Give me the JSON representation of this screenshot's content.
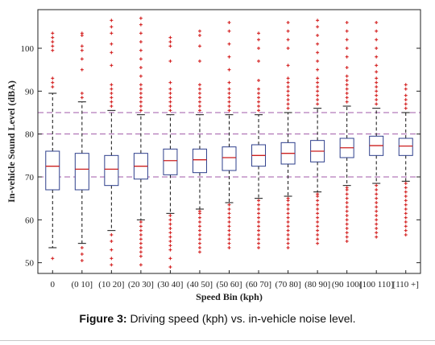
{
  "caption": {
    "label": "Figure 3:",
    "text": "Driving speed (kph) vs. in-vehicle noise level."
  },
  "chart_data": {
    "type": "boxplot",
    "title": "",
    "xlabel": "Speed Bin (kph)",
    "ylabel": "In-vehicle Sound Level (dBA)",
    "ylim": [
      47.5,
      109
    ],
    "yticks": [
      50,
      60,
      70,
      80,
      90,
      100
    ],
    "grid": false,
    "categories": [
      "0",
      "(0 10]",
      "(10 20]",
      "(20 30]",
      "(30 40]",
      "(40 50]",
      "(50 60]",
      "(60 70]",
      "(70 80]",
      "(80 90]",
      "(90 100]",
      "(100 110]",
      "[110 +]"
    ],
    "boxes": [
      {
        "whisker_low": 53.5,
        "q1": 67,
        "median": 72.5,
        "q3": 76,
        "whisker_high": 89.5
      },
      {
        "whisker_low": 54.5,
        "q1": 67,
        "median": 71.8,
        "q3": 75.5,
        "whisker_high": 87.5
      },
      {
        "whisker_low": 57.5,
        "q1": 68,
        "median": 71.8,
        "q3": 75,
        "whisker_high": 85.5
      },
      {
        "whisker_low": 60,
        "q1": 69.5,
        "median": 72.5,
        "q3": 75.5,
        "whisker_high": 84.5
      },
      {
        "whisker_low": 61.5,
        "q1": 70.5,
        "median": 73.8,
        "q3": 76.5,
        "whisker_high": 84.5
      },
      {
        "whisker_low": 62.5,
        "q1": 71,
        "median": 74,
        "q3": 76.5,
        "whisker_high": 84.5
      },
      {
        "whisker_low": 64,
        "q1": 71.5,
        "median": 74.5,
        "q3": 77,
        "whisker_high": 84.5
      },
      {
        "whisker_low": 65,
        "q1": 72.5,
        "median": 75,
        "q3": 77.5,
        "whisker_high": 84.5
      },
      {
        "whisker_low": 65.5,
        "q1": 73,
        "median": 75.5,
        "q3": 78,
        "whisker_high": 85
      },
      {
        "whisker_low": 66.5,
        "q1": 73.5,
        "median": 76,
        "q3": 78.5,
        "whisker_high": 86
      },
      {
        "whisker_low": 68,
        "q1": 74.5,
        "median": 76.8,
        "q3": 79,
        "whisker_high": 86.5
      },
      {
        "whisker_low": 68.5,
        "q1": 75,
        "median": 77.3,
        "q3": 79.5,
        "whisker_high": 86
      },
      {
        "whisker_low": 69,
        "q1": 75,
        "median": 77.2,
        "q3": 79,
        "whisker_high": 85
      }
    ],
    "outliers_low": [
      [
        51
      ],
      [
        50.5,
        52,
        53.5
      ],
      [
        49.5,
        51,
        53,
        55,
        56.5
      ],
      [
        49.5,
        51.5,
        52.5,
        53.5,
        54.5,
        55.5,
        56.5,
        57.5,
        58.5,
        59.5
      ],
      [
        49,
        51,
        53,
        54,
        55,
        56,
        57,
        58,
        59,
        60,
        61
      ],
      [
        52.5,
        53.5,
        54.5,
        55.5,
        56.5,
        57.5,
        58.5,
        59.5,
        60.5,
        61.5,
        62
      ],
      [
        53.5,
        54.5,
        55.5,
        56.5,
        57.5,
        58.5,
        59.5,
        60.5,
        61.5,
        62.5,
        63.5
      ],
      [
        53.5,
        54.5,
        55.5,
        56.5,
        57.5,
        58.5,
        59.5,
        60.5,
        61.5,
        62.5,
        63.5,
        64.5
      ],
      [
        53.5,
        54.5,
        55.5,
        56.5,
        57.5,
        58.5,
        59.5,
        60.5,
        61.5,
        62.5,
        63.5,
        64.5,
        65
      ],
      [
        54.5,
        55.5,
        56.5,
        57.5,
        58.5,
        59.5,
        60.5,
        61.5,
        62.5,
        63.5,
        64.5,
        65.5,
        66
      ],
      [
        55,
        56,
        57,
        58,
        59,
        60,
        61,
        62,
        63,
        64,
        65,
        66,
        67,
        67.5
      ],
      [
        56,
        57,
        58,
        59,
        60,
        61,
        62,
        63,
        64,
        65,
        66,
        67,
        68
      ],
      [
        56.5,
        57.5,
        58.5,
        59.5,
        60.5,
        61.5,
        62.5,
        63.5,
        64.5,
        65.5,
        66.5,
        67.5,
        68.5
      ]
    ],
    "outliers_high": [
      [
        91,
        92,
        93,
        99.5,
        100.5,
        101.5,
        102.5,
        103.5
      ],
      [
        88.5,
        89.5,
        95,
        97.5,
        99.5,
        100.5,
        103,
        103.5
      ],
      [
        86.5,
        87.5,
        88.5,
        89.5,
        90.5,
        91.5,
        96,
        99,
        101,
        103.5,
        105,
        106.5
      ],
      [
        85.5,
        86.5,
        87.5,
        88.5,
        89.5,
        90.5,
        91.5,
        93.5,
        95.5,
        97.5,
        99.5,
        101.5,
        103.5,
        105.5,
        107
      ],
      [
        85.5,
        86.5,
        87.5,
        88.5,
        89.5,
        90.5,
        92,
        97,
        100.5,
        101.5,
        102.5
      ],
      [
        85.5,
        86.5,
        87.5,
        88.5,
        89.5,
        90.5,
        91.5,
        97,
        100.5,
        103,
        104
      ],
      [
        85.5,
        86.5,
        87.5,
        88.5,
        89.5,
        90.5,
        92,
        95,
        98,
        101,
        104,
        106
      ],
      [
        85.5,
        86.5,
        87.5,
        88.5,
        89.5,
        90.5,
        92.5,
        97,
        100,
        102,
        103.5
      ],
      [
        86,
        87,
        88,
        89,
        90,
        91,
        92,
        93,
        96,
        100,
        102,
        104,
        106
      ],
      [
        87,
        88,
        89,
        90,
        91,
        92,
        93,
        95,
        97,
        99,
        101,
        103,
        105,
        106.5
      ],
      [
        87.5,
        88.5,
        89.5,
        90.5,
        91.5,
        92.5,
        93.5,
        95.5,
        98,
        100,
        102,
        104,
        106
      ],
      [
        87,
        88,
        89,
        90,
        91,
        92,
        93,
        94.5,
        96,
        98,
        100,
        102,
        104,
        106
      ],
      [
        86,
        87,
        88,
        89,
        90.5,
        91.5
      ]
    ],
    "reference_lines": [
      70,
      80,
      85
    ],
    "colors": {
      "box": "#2e3f8c",
      "median": "#cc1f1f",
      "outlier": "#d42222",
      "whisker": "#111111",
      "reference": "#a05aa8"
    }
  }
}
